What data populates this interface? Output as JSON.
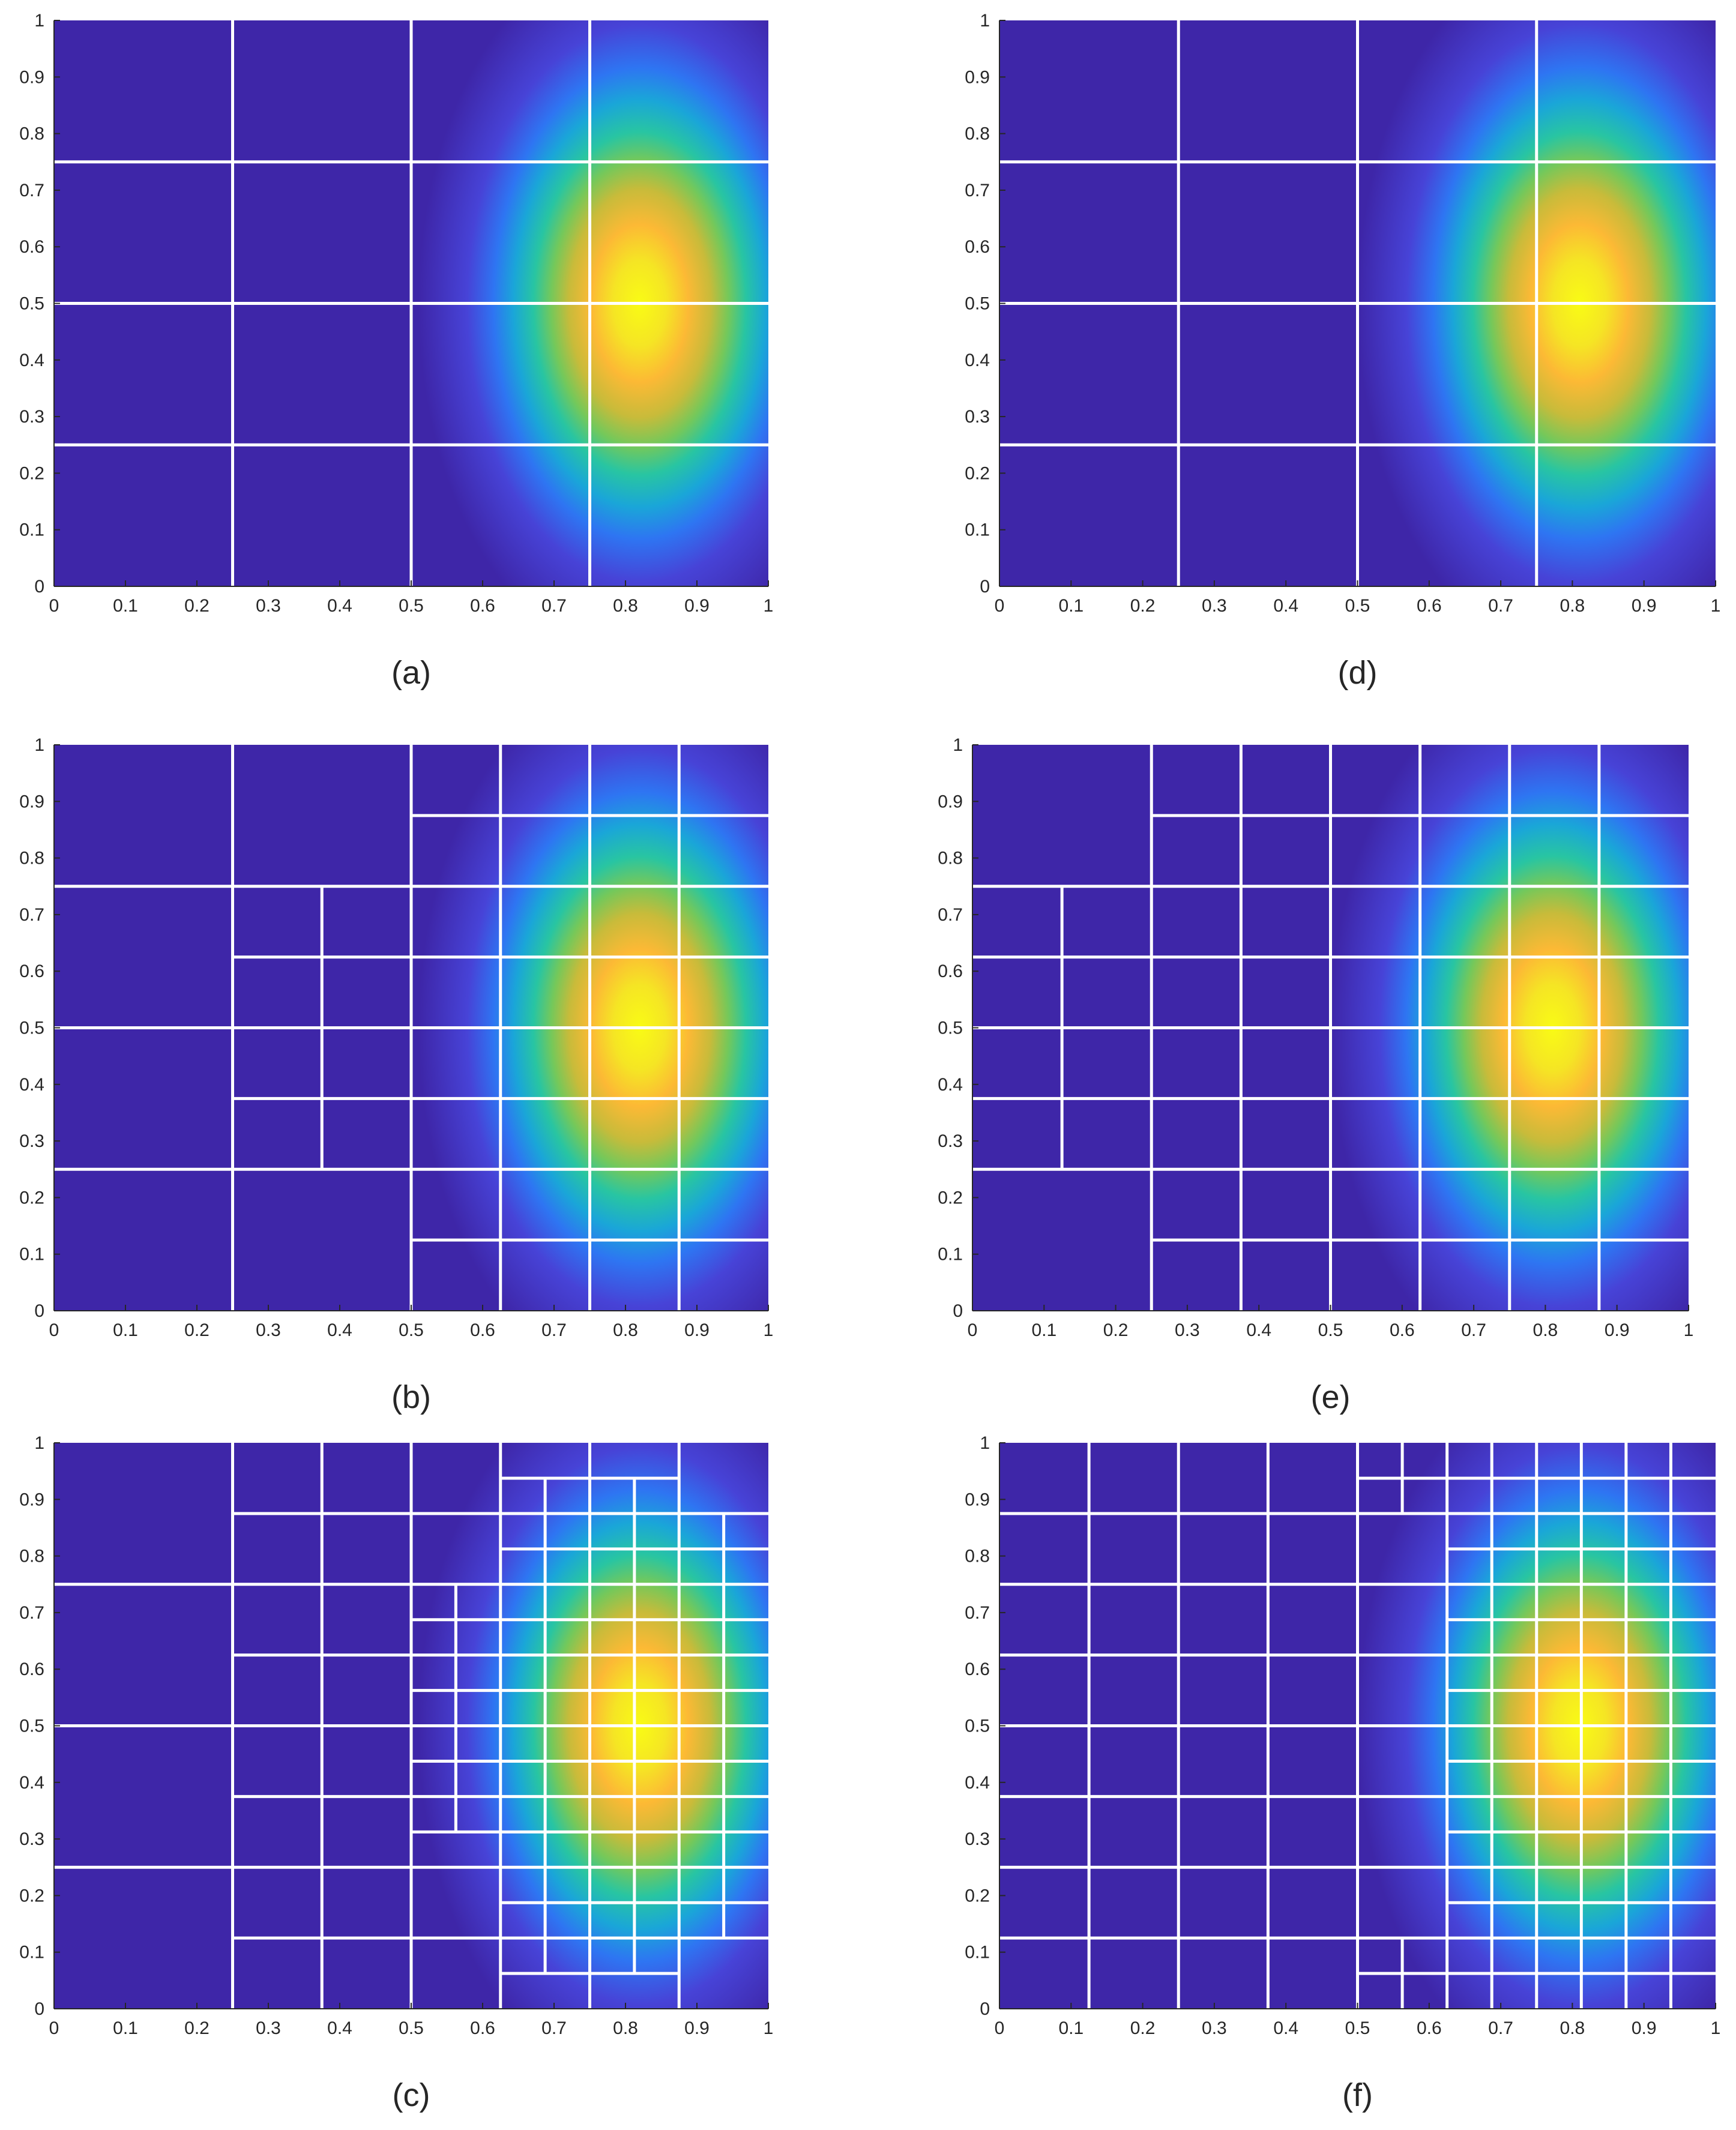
{
  "chart_data": [
    {
      "type": "heatmap",
      "caption": "(a)",
      "x_ticks": [
        "0",
        "0.1",
        "0.2",
        "0.3",
        "0.4",
        "0.5",
        "0.6",
        "0.7",
        "0.8",
        "0.9",
        "1"
      ],
      "y_ticks": [
        "0",
        "0.1",
        "0.2",
        "0.3",
        "0.4",
        "0.5",
        "0.6",
        "0.7",
        "0.8",
        "0.9",
        "1"
      ],
      "xlim": [
        0,
        1
      ],
      "ylim": [
        0,
        1
      ],
      "field_peak": {
        "x": 0.82,
        "y": 0.5
      },
      "mesh_segments": [
        [
          0.25,
          0,
          0.25,
          1
        ],
        [
          0.5,
          0,
          0.5,
          1
        ],
        [
          0.75,
          0,
          0.75,
          1
        ],
        [
          0,
          0.25,
          1,
          0.25
        ],
        [
          0,
          0.5,
          1,
          0.5
        ],
        [
          0,
          0.75,
          1,
          0.75
        ]
      ]
    },
    {
      "type": "heatmap",
      "caption": "(b)",
      "x_ticks": [
        "0",
        "0.1",
        "0.2",
        "0.3",
        "0.4",
        "0.5",
        "0.6",
        "0.7",
        "0.8",
        "0.9",
        "1"
      ],
      "y_ticks": [
        "0",
        "0.1",
        "0.2",
        "0.3",
        "0.4",
        "0.5",
        "0.6",
        "0.7",
        "0.8",
        "0.9",
        "1"
      ],
      "xlim": [
        0,
        1
      ],
      "ylim": [
        0,
        1
      ],
      "field_peak": {
        "x": 0.82,
        "y": 0.5
      },
      "mesh_segments": [
        [
          0.25,
          0,
          0.25,
          1
        ],
        [
          0.5,
          0,
          0.5,
          1
        ],
        [
          0.75,
          0,
          0.75,
          1
        ],
        [
          0.625,
          0,
          0.625,
          1
        ],
        [
          0.875,
          0,
          0.875,
          1
        ],
        [
          0.375,
          0.25,
          0.375,
          0.75
        ],
        [
          0,
          0.25,
          1,
          0.25
        ],
        [
          0,
          0.5,
          1,
          0.5
        ],
        [
          0,
          0.75,
          1,
          0.75
        ],
        [
          0.5,
          0.125,
          1,
          0.125
        ],
        [
          0.5,
          0.875,
          1,
          0.875
        ],
        [
          0.25,
          0.375,
          1,
          0.375
        ],
        [
          0.25,
          0.625,
          1,
          0.625
        ]
      ]
    },
    {
      "type": "heatmap",
      "caption": "(c)",
      "x_ticks": [
        "0",
        "0.1",
        "0.2",
        "0.3",
        "0.4",
        "0.5",
        "0.6",
        "0.7",
        "0.8",
        "0.9",
        "1"
      ],
      "y_ticks": [
        "0",
        "0.1",
        "0.2",
        "0.3",
        "0.4",
        "0.5",
        "0.6",
        "0.7",
        "0.8",
        "0.9",
        "1"
      ],
      "xlim": [
        0,
        1
      ],
      "ylim": [
        0,
        1
      ],
      "field_peak": {
        "x": 0.82,
        "y": 0.5
      },
      "mesh_segments": [
        [
          0.25,
          0,
          0.25,
          1
        ],
        [
          0.375,
          0,
          0.375,
          1
        ],
        [
          0.5,
          0,
          0.5,
          1
        ],
        [
          0.625,
          0,
          0.625,
          1
        ],
        [
          0.75,
          0,
          0.75,
          1
        ],
        [
          0.875,
          0,
          0.875,
          1
        ],
        [
          0.5625,
          0.3125,
          0.5625,
          0.75
        ],
        [
          0.6875,
          0.0625,
          0.6875,
          0.9375
        ],
        [
          0.8125,
          0.0625,
          0.8125,
          0.9375
        ],
        [
          0.9375,
          0.125,
          0.9375,
          0.875
        ],
        [
          0,
          0.25,
          1,
          0.25
        ],
        [
          0,
          0.5,
          1,
          0.5
        ],
        [
          0,
          0.75,
          1,
          0.75
        ],
        [
          0.25,
          0.125,
          1,
          0.125
        ],
        [
          0.25,
          0.375,
          1,
          0.375
        ],
        [
          0.25,
          0.625,
          1,
          0.625
        ],
        [
          0.25,
          0.875,
          1,
          0.875
        ],
        [
          0.5,
          0.3125,
          1,
          0.3125
        ],
        [
          0.5,
          0.4375,
          1,
          0.4375
        ],
        [
          0.5,
          0.5625,
          1,
          0.5625
        ],
        [
          0.5,
          0.6875,
          1,
          0.6875
        ],
        [
          0.625,
          0.0625,
          0.875,
          0.0625
        ],
        [
          0.625,
          0.1875,
          1,
          0.1875
        ],
        [
          0.625,
          0.8125,
          1,
          0.8125
        ],
        [
          0.625,
          0.9375,
          0.875,
          0.9375
        ]
      ]
    },
    {
      "type": "heatmap",
      "caption": "(d)",
      "x_ticks": [
        "0",
        "0.1",
        "0.2",
        "0.3",
        "0.4",
        "0.5",
        "0.6",
        "0.7",
        "0.8",
        "0.9",
        "1"
      ],
      "y_ticks": [
        "0",
        "0.1",
        "0.2",
        "0.3",
        "0.4",
        "0.5",
        "0.6",
        "0.7",
        "0.8",
        "0.9",
        "1"
      ],
      "xlim": [
        0,
        1
      ],
      "ylim": [
        0,
        1
      ],
      "field_peak": {
        "x": 0.81,
        "y": 0.5
      },
      "mesh_segments": [
        [
          0.25,
          0,
          0.25,
          1
        ],
        [
          0.5,
          0,
          0.5,
          1
        ],
        [
          0.75,
          0,
          0.75,
          1
        ],
        [
          0,
          0.25,
          1,
          0.25
        ],
        [
          0,
          0.5,
          1,
          0.5
        ],
        [
          0,
          0.75,
          1,
          0.75
        ]
      ]
    },
    {
      "type": "heatmap",
      "caption": "(e)",
      "x_ticks": [
        "0",
        "0.1",
        "0.2",
        "0.3",
        "0.4",
        "0.5",
        "0.6",
        "0.7",
        "0.8",
        "0.9",
        "1"
      ],
      "y_ticks": [
        "0",
        "0.1",
        "0.2",
        "0.3",
        "0.4",
        "0.5",
        "0.6",
        "0.7",
        "0.8",
        "0.9",
        "1"
      ],
      "xlim": [
        0,
        1
      ],
      "ylim": [
        0,
        1
      ],
      "field_peak": {
        "x": 0.81,
        "y": 0.5
      },
      "mesh_segments": [
        [
          0.125,
          0.25,
          0.125,
          0.75
        ],
        [
          0.25,
          0,
          0.25,
          1
        ],
        [
          0.375,
          0,
          0.375,
          1
        ],
        [
          0.5,
          0,
          0.5,
          1
        ],
        [
          0.625,
          0,
          0.625,
          1
        ],
        [
          0.75,
          0,
          0.75,
          1
        ],
        [
          0.875,
          0,
          0.875,
          1
        ],
        [
          0,
          0.25,
          1,
          0.25
        ],
        [
          0,
          0.5,
          1,
          0.5
        ],
        [
          0,
          0.75,
          1,
          0.75
        ],
        [
          0,
          0.375,
          1,
          0.375
        ],
        [
          0,
          0.625,
          1,
          0.625
        ],
        [
          0.25,
          0.125,
          1,
          0.125
        ],
        [
          0.25,
          0.875,
          1,
          0.875
        ]
      ]
    },
    {
      "type": "heatmap",
      "caption": "(f)",
      "x_ticks": [
        "0",
        "0.1",
        "0.2",
        "0.3",
        "0.4",
        "0.5",
        "0.6",
        "0.7",
        "0.8",
        "0.9",
        "1"
      ],
      "y_ticks": [
        "0",
        "0.1",
        "0.2",
        "0.3",
        "0.4",
        "0.5",
        "0.6",
        "0.7",
        "0.8",
        "0.9",
        "1"
      ],
      "xlim": [
        0,
        1
      ],
      "ylim": [
        0,
        1
      ],
      "field_peak": {
        "x": 0.81,
        "y": 0.5
      },
      "mesh_segments": [
        [
          0.125,
          0,
          0.125,
          1
        ],
        [
          0.25,
          0,
          0.25,
          1
        ],
        [
          0.375,
          0,
          0.375,
          1
        ],
        [
          0.5,
          0,
          0.5,
          1
        ],
        [
          0.625,
          0,
          0.625,
          1
        ],
        [
          0.75,
          0,
          0.75,
          1
        ],
        [
          0.875,
          0,
          0.875,
          1
        ],
        [
          0.5625,
          0,
          0.5625,
          0.125
        ],
        [
          0.5625,
          0.875,
          0.5625,
          1
        ],
        [
          0.6875,
          0,
          0.6875,
          1
        ],
        [
          0.8125,
          0,
          0.8125,
          1
        ],
        [
          0.9375,
          0,
          0.9375,
          1
        ],
        [
          0,
          0.125,
          1,
          0.125
        ],
        [
          0,
          0.25,
          1,
          0.25
        ],
        [
          0,
          0.375,
          1,
          0.375
        ],
        [
          0,
          0.5,
          1,
          0.5
        ],
        [
          0,
          0.625,
          1,
          0.625
        ],
        [
          0,
          0.75,
          1,
          0.75
        ],
        [
          0,
          0.875,
          1,
          0.875
        ],
        [
          0.5,
          0.0625,
          1,
          0.0625
        ],
        [
          0.5,
          0.9375,
          1,
          0.9375
        ],
        [
          0.625,
          0.1875,
          1,
          0.1875
        ],
        [
          0.625,
          0.3125,
          1,
          0.3125
        ],
        [
          0.625,
          0.4375,
          1,
          0.4375
        ],
        [
          0.625,
          0.5625,
          1,
          0.5625
        ],
        [
          0.625,
          0.6875,
          1,
          0.6875
        ],
        [
          0.625,
          0.8125,
          1,
          0.8125
        ]
      ]
    }
  ],
  "colors": {
    "parula": [
      "#3e26a8",
      "#4743d7",
      "#2e75f2",
      "#1aa6d8",
      "#28c5a2",
      "#75c85a",
      "#c8bb3a",
      "#fcb935",
      "#f5e524",
      "#f9fb15"
    ],
    "background": "#4d44a0",
    "mesh": "#ffffff"
  }
}
